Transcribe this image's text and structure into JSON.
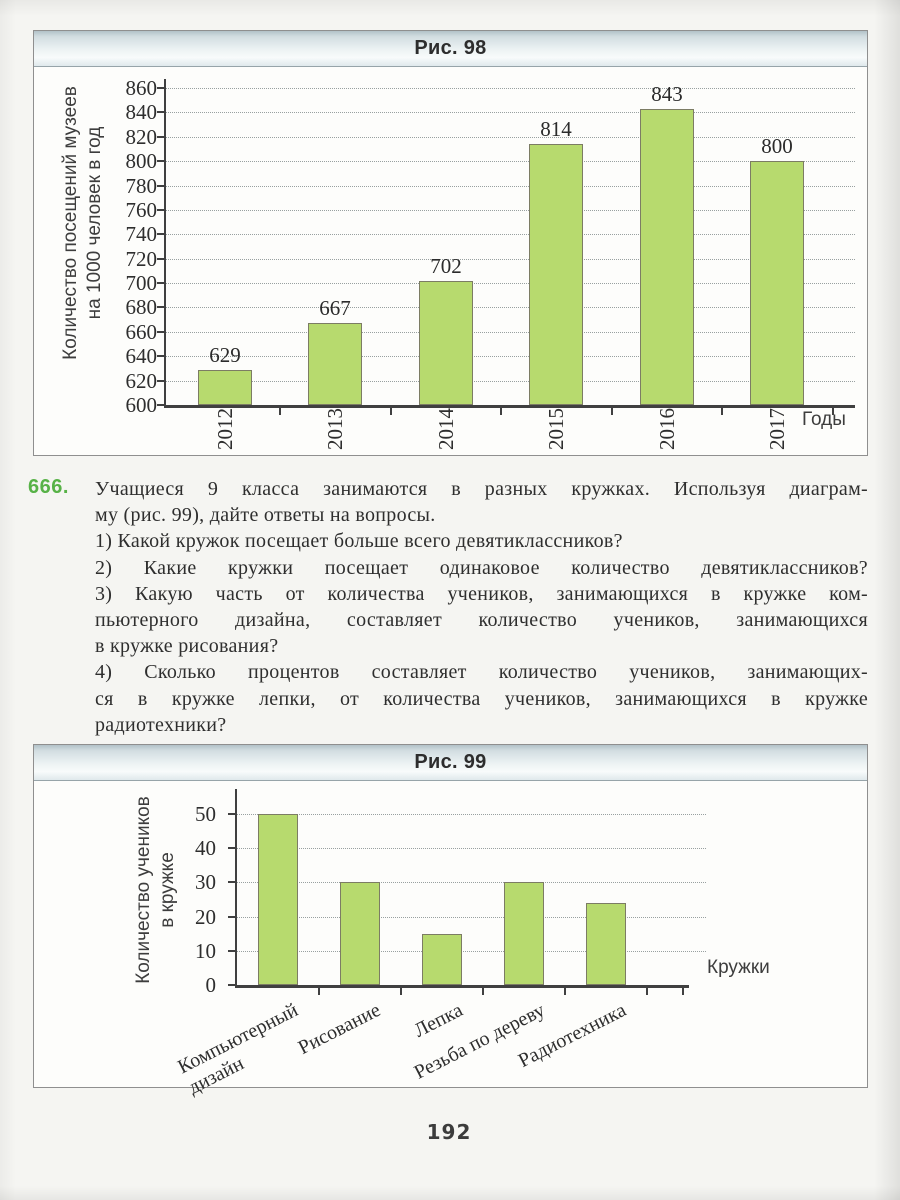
{
  "page": {
    "number": "192"
  },
  "figures": {
    "fig98": {
      "title": "Рис. 98"
    },
    "fig99": {
      "title": "Рис. 99"
    }
  },
  "exercise": {
    "number": "666.",
    "lines": [
      {
        "text": "Учащиеся 9 класса занимаются в разных кружках. Используя диаграм-",
        "justified": true
      },
      {
        "text": "му (рис. 99), дайте ответы на вопросы.",
        "justified": false
      },
      {
        "text": "1) Какой кружок посещает больше всего девятиклассников?",
        "justified": false
      },
      {
        "text": "2) Какие кружки посещает одинаковое количество девятиклассников?",
        "justified": true
      },
      {
        "text": "3) Какую часть от количества учеников, занимающихся в кружке ком-",
        "justified": true
      },
      {
        "text": "пьютерного дизайна, составляет количество учеников, занимающихся",
        "justified": true
      },
      {
        "text": "в кружке рисования?",
        "justified": false
      },
      {
        "text": "4) Сколько процентов составляет количество учеников, занимающих-",
        "justified": true
      },
      {
        "text": "ся в кружке лепки, от количества учеников, занимающихся в кружке",
        "justified": true
      },
      {
        "text": "радиотехники?",
        "justified": false
      }
    ]
  },
  "chart_data": [
    {
      "id": "fig98",
      "type": "bar",
      "title": "Рис. 98",
      "categories": [
        "2012",
        "2013",
        "2014",
        "2015",
        "2016",
        "2017"
      ],
      "values": [
        629,
        667,
        702,
        814,
        843,
        800
      ],
      "bar_labels": [
        "629",
        "667",
        "702",
        "814",
        "843",
        "800"
      ],
      "xlabel": "Годы",
      "ylabel": "Количество посещений музеев на 1000 человек в год",
      "ylabel_lines": [
        "Количество посещений музеев",
        "на 1000 человек в год"
      ],
      "ylim": [
        600,
        860
      ],
      "ytick_step": 20,
      "yticks": [
        600,
        620,
        640,
        660,
        680,
        700,
        720,
        740,
        760,
        780,
        800,
        820,
        840,
        860
      ],
      "grid": "horizontal-dotted",
      "legend": "none",
      "bar_color": "#b7da6e",
      "bar_border_color": "#7c7c64"
    },
    {
      "id": "fig99",
      "type": "bar",
      "title": "Рис. 99",
      "categories": [
        "Компьютерный дизайн",
        "Рисование",
        "Лепка",
        "Резьба по дереву",
        "Радиотехника"
      ],
      "xtick_lines": [
        [
          "Компьютерный",
          "дизайн"
        ],
        [
          "Рисование"
        ],
        [
          "Лепка"
        ],
        [
          "Резьба по дереву"
        ],
        [
          "Радиотехника"
        ]
      ],
      "values": [
        50,
        30,
        15,
        30,
        24
      ],
      "xlabel": "Кружки",
      "ylabel": "Количество учеников в кружке",
      "ylabel_lines": [
        "Количество учеников",
        "в кружке"
      ],
      "ylim": [
        0,
        50
      ],
      "ytick_step": 10,
      "yticks": [
        0,
        10,
        20,
        30,
        40,
        50
      ],
      "grid": "horizontal-dotted",
      "legend": "none",
      "bar_color": "#b7da6e",
      "bar_border_color": "#7c7c64"
    }
  ]
}
